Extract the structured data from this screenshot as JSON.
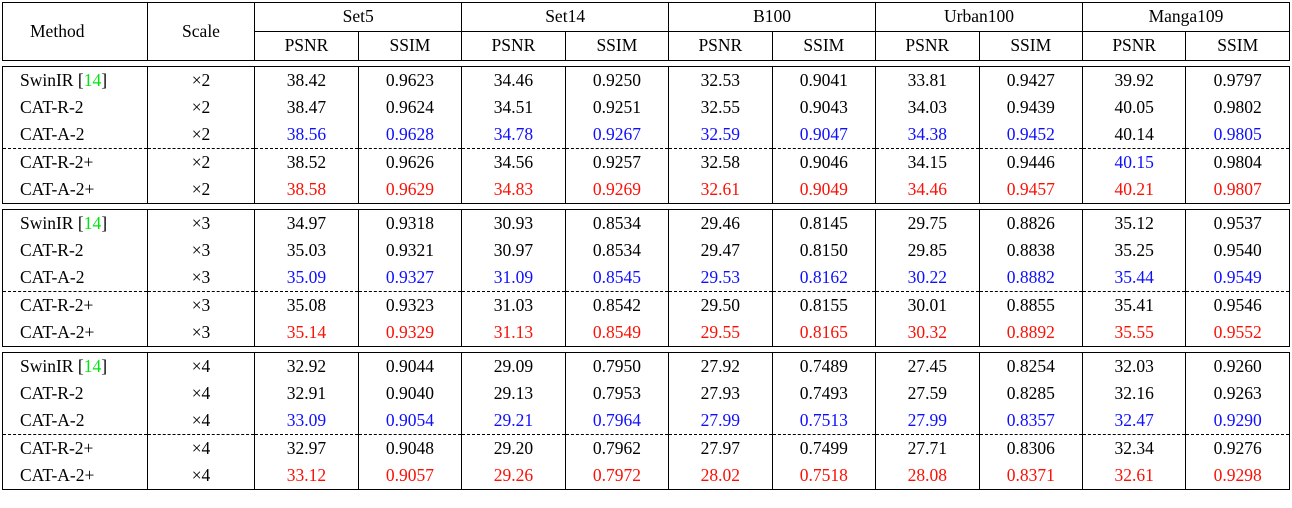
{
  "header": {
    "method": "Method",
    "scale": "Scale",
    "datasets": [
      "Set5",
      "Set14",
      "B100",
      "Urban100",
      "Manga109"
    ],
    "metrics": [
      "PSNR",
      "SSIM"
    ]
  },
  "colors": {
    "best": "#fb1005",
    "second_best": "#0f0fff",
    "citation_green": "#00e412",
    "text": "#000000"
  },
  "blocks": [
    {
      "scale": "×2",
      "rows": [
        {
          "method": "SwinIR",
          "cite": "14",
          "values": [
            "38.42",
            "0.9623",
            "34.46",
            "0.9250",
            "32.53",
            "0.9041",
            "33.81",
            "0.9427",
            "39.92",
            "0.9797"
          ],
          "colors": [
            "k",
            "k",
            "k",
            "k",
            "k",
            "k",
            "k",
            "k",
            "k",
            "k"
          ],
          "dashed": false
        },
        {
          "method": "CAT-R-2",
          "values": [
            "38.47",
            "0.9624",
            "34.51",
            "0.9251",
            "32.55",
            "0.9043",
            "34.03",
            "0.9439",
            "40.05",
            "0.9802"
          ],
          "colors": [
            "k",
            "k",
            "k",
            "k",
            "k",
            "k",
            "k",
            "k",
            "k",
            "k"
          ],
          "dashed": false
        },
        {
          "method": "CAT-A-2",
          "values": [
            "38.56",
            "0.9628",
            "34.78",
            "0.9267",
            "32.59",
            "0.9047",
            "34.38",
            "0.9452",
            "40.14",
            "0.9805"
          ],
          "colors": [
            "b",
            "b",
            "b",
            "b",
            "b",
            "b",
            "b",
            "b",
            "k",
            "b"
          ],
          "dashed": false
        },
        {
          "method": "CAT-R-2+",
          "values": [
            "38.52",
            "0.9626",
            "34.56",
            "0.9257",
            "32.58",
            "0.9046",
            "34.15",
            "0.9446",
            "40.15",
            "0.9804"
          ],
          "colors": [
            "k",
            "k",
            "k",
            "k",
            "k",
            "k",
            "k",
            "k",
            "b",
            "k"
          ],
          "dashed": true
        },
        {
          "method": "CAT-A-2+",
          "values": [
            "38.58",
            "0.9629",
            "34.83",
            "0.9269",
            "32.61",
            "0.9049",
            "34.46",
            "0.9457",
            "40.21",
            "0.9807"
          ],
          "colors": [
            "r",
            "r",
            "r",
            "r",
            "r",
            "r",
            "r",
            "r",
            "r",
            "r"
          ],
          "dashed": false
        }
      ]
    },
    {
      "scale": "×3",
      "rows": [
        {
          "method": "SwinIR",
          "cite": "14",
          "values": [
            "34.97",
            "0.9318",
            "30.93",
            "0.8534",
            "29.46",
            "0.8145",
            "29.75",
            "0.8826",
            "35.12",
            "0.9537"
          ],
          "colors": [
            "k",
            "k",
            "k",
            "k",
            "k",
            "k",
            "k",
            "k",
            "k",
            "k"
          ],
          "dashed": false
        },
        {
          "method": "CAT-R-2",
          "values": [
            "35.03",
            "0.9321",
            "30.97",
            "0.8534",
            "29.47",
            "0.8150",
            "29.85",
            "0.8838",
            "35.25",
            "0.9540"
          ],
          "colors": [
            "k",
            "k",
            "k",
            "k",
            "k",
            "k",
            "k",
            "k",
            "k",
            "k"
          ],
          "dashed": false
        },
        {
          "method": "CAT-A-2",
          "values": [
            "35.09",
            "0.9327",
            "31.09",
            "0.8545",
            "29.53",
            "0.8162",
            "30.22",
            "0.8882",
            "35.44",
            "0.9549"
          ],
          "colors": [
            "b",
            "b",
            "b",
            "b",
            "b",
            "b",
            "b",
            "b",
            "b",
            "b"
          ],
          "dashed": false
        },
        {
          "method": "CAT-R-2+",
          "values": [
            "35.08",
            "0.9323",
            "31.03",
            "0.8542",
            "29.50",
            "0.8155",
            "30.01",
            "0.8855",
            "35.41",
            "0.9546"
          ],
          "colors": [
            "k",
            "k",
            "k",
            "k",
            "k",
            "k",
            "k",
            "k",
            "k",
            "k"
          ],
          "dashed": true
        },
        {
          "method": "CAT-A-2+",
          "values": [
            "35.14",
            "0.9329",
            "31.13",
            "0.8549",
            "29.55",
            "0.8165",
            "30.32",
            "0.8892",
            "35.55",
            "0.9552"
          ],
          "colors": [
            "r",
            "r",
            "r",
            "r",
            "r",
            "r",
            "r",
            "r",
            "r",
            "r"
          ],
          "dashed": false
        }
      ]
    },
    {
      "scale": "×4",
      "rows": [
        {
          "method": "SwinIR",
          "cite": "14",
          "values": [
            "32.92",
            "0.9044",
            "29.09",
            "0.7950",
            "27.92",
            "0.7489",
            "27.45",
            "0.8254",
            "32.03",
            "0.9260"
          ],
          "colors": [
            "k",
            "k",
            "k",
            "k",
            "k",
            "k",
            "k",
            "k",
            "k",
            "k"
          ],
          "dashed": false
        },
        {
          "method": "CAT-R-2",
          "values": [
            "32.91",
            "0.9040",
            "29.13",
            "0.7953",
            "27.93",
            "0.7493",
            "27.59",
            "0.8285",
            "32.16",
            "0.9263"
          ],
          "colors": [
            "k",
            "k",
            "k",
            "k",
            "k",
            "k",
            "k",
            "k",
            "k",
            "k"
          ],
          "dashed": false
        },
        {
          "method": "CAT-A-2",
          "values": [
            "33.09",
            "0.9054",
            "29.21",
            "0.7964",
            "27.99",
            "0.7513",
            "27.99",
            "0.8357",
            "32.47",
            "0.9290"
          ],
          "colors": [
            "b",
            "b",
            "b",
            "b",
            "b",
            "b",
            "b",
            "b",
            "b",
            "b"
          ],
          "dashed": false
        },
        {
          "method": "CAT-R-2+",
          "values": [
            "32.97",
            "0.9048",
            "29.20",
            "0.7962",
            "27.97",
            "0.7499",
            "27.71",
            "0.8306",
            "32.34",
            "0.9276"
          ],
          "colors": [
            "k",
            "k",
            "k",
            "k",
            "k",
            "k",
            "k",
            "k",
            "k",
            "k"
          ],
          "dashed": true
        },
        {
          "method": "CAT-A-2+",
          "values": [
            "33.12",
            "0.9057",
            "29.26",
            "0.7972",
            "28.02",
            "0.7518",
            "28.08",
            "0.8371",
            "32.61",
            "0.9298"
          ],
          "colors": [
            "r",
            "r",
            "r",
            "r",
            "r",
            "r",
            "r",
            "r",
            "r",
            "r"
          ],
          "dashed": false
        }
      ]
    }
  ]
}
